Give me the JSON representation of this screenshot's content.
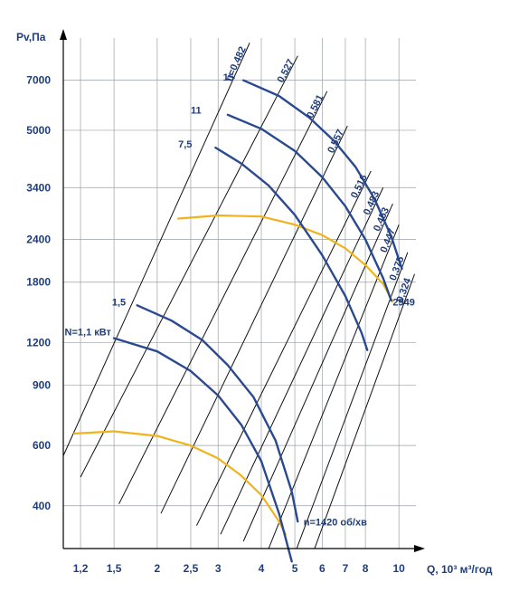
{
  "chart_data": {
    "type": "line",
    "title": "",
    "xlabel": "Q, 10³ м³/год",
    "ylabel": "Pv,Па",
    "x_scale": "log",
    "y_scale": "log",
    "xlim": [
      1.07,
      11.2
    ],
    "ylim": [
      300,
      9300
    ],
    "x_ticks": [
      {
        "value": 1.2,
        "label": "1,2"
      },
      {
        "value": 1.5,
        "label": "1,5"
      },
      {
        "value": 2,
        "label": "2"
      },
      {
        "value": 2.5,
        "label": "2,5"
      },
      {
        "value": 3,
        "label": "3"
      },
      {
        "value": 4,
        "label": "4"
      },
      {
        "value": 5,
        "label": "5"
      },
      {
        "value": 6,
        "label": "6"
      },
      {
        "value": 7,
        "label": "7"
      },
      {
        "value": 8,
        "label": "8"
      },
      {
        "value": 10,
        "label": "10"
      }
    ],
    "y_ticks": [
      {
        "value": 400,
        "label": "400"
      },
      {
        "value": 600,
        "label": "600"
      },
      {
        "value": 900,
        "label": "900"
      },
      {
        "value": 1200,
        "label": "1200"
      },
      {
        "value": 1800,
        "label": "1800"
      },
      {
        "value": 2400,
        "label": "2400"
      },
      {
        "value": 3400,
        "label": "3400"
      },
      {
        "value": 5000,
        "label": "5000"
      },
      {
        "value": 7000,
        "label": "7000"
      }
    ],
    "grid": true,
    "fan_curves": [
      {
        "name": "n=1420 об/хв",
        "color": "#f0b31c",
        "label_at": [
          5.3,
          350
        ],
        "points": [
          [
            1.15,
            650
          ],
          [
            1.5,
            660
          ],
          [
            2.0,
            640
          ],
          [
            2.5,
            600
          ],
          [
            3.0,
            550
          ],
          [
            3.5,
            490
          ],
          [
            4.0,
            430
          ],
          [
            4.5,
            360
          ],
          [
            4.7,
            330
          ]
        ]
      },
      {
        "name": "2949",
        "color": "#f0b31c",
        "label_at": [
          9.6,
          1540
        ],
        "points": [
          [
            2.3,
            2760
          ],
          [
            3.0,
            2820
          ],
          [
            4.0,
            2800
          ],
          [
            5.0,
            2650
          ],
          [
            6.0,
            2470
          ],
          [
            7.0,
            2260
          ],
          [
            8.0,
            2020
          ],
          [
            9.0,
            1780
          ],
          [
            9.6,
            1580
          ]
        ]
      }
    ],
    "power_curves": [
      {
        "name": "N=1,1 кВт",
        "color": "#2a4a8f",
        "label_at": [
          1.08,
          1260
        ],
        "points": [
          [
            1.5,
            1235
          ],
          [
            2.0,
            1130
          ],
          [
            2.5,
            990
          ],
          [
            3.0,
            840
          ],
          [
            3.5,
            690
          ],
          [
            4.0,
            540
          ],
          [
            4.5,
            380
          ],
          [
            4.9,
            275
          ]
        ]
      },
      {
        "name": "1,5",
        "color": "#2a4a8f",
        "label_at": [
          1.48,
          1540
        ],
        "points": [
          [
            1.75,
            1540
          ],
          [
            2.2,
            1390
          ],
          [
            2.7,
            1220
          ],
          [
            3.2,
            1030
          ],
          [
            3.8,
            830
          ],
          [
            4.4,
            620
          ],
          [
            4.9,
            440
          ],
          [
            5.1,
            360
          ]
        ]
      },
      {
        "name": "7,5",
        "color": "#2a4a8f",
        "label_at": [
          2.3,
          4450
        ],
        "points": [
          [
            2.95,
            4450
          ],
          [
            3.5,
            4000
          ],
          [
            4.2,
            3450
          ],
          [
            5.0,
            2830
          ],
          [
            6.0,
            2160
          ],
          [
            7.0,
            1640
          ],
          [
            7.8,
            1280
          ],
          [
            8.1,
            1140
          ]
        ]
      },
      {
        "name": "11",
        "color": "#2a4a8f",
        "label_at": [
          2.5,
          5600
        ],
        "points": [
          [
            3.2,
            5550
          ],
          [
            4.0,
            5050
          ],
          [
            5.0,
            4350
          ],
          [
            6.0,
            3650
          ],
          [
            7.0,
            3000
          ],
          [
            8.0,
            2400
          ],
          [
            9.0,
            1850
          ],
          [
            9.5,
            1590
          ]
        ]
      },
      {
        "name": "15",
        "color": "#2a4a8f",
        "label_at": [
          3.1,
          6980
        ],
        "points": [
          [
            3.55,
            7000
          ],
          [
            4.5,
            6300
          ],
          [
            5.5,
            5450
          ],
          [
            6.5,
            4650
          ],
          [
            7.5,
            3900
          ],
          [
            8.5,
            3150
          ],
          [
            9.5,
            2450
          ],
          [
            10.2,
            1970
          ]
        ]
      }
    ],
    "efficiency_lines": [
      {
        "label": "η=0,482",
        "top": [
          3.7,
          9000
        ],
        "bottom": [
          1.07,
          560
        ]
      },
      {
        "label": "0,527",
        "top": [
          5.1,
          8250
        ],
        "bottom": [
          1.2,
          485
        ]
      },
      {
        "label": "0,581",
        "top": [
          6.2,
          6500
        ],
        "bottom": [
          1.55,
          405
        ]
      },
      {
        "label": "0,557",
        "top": [
          7.1,
          5150
        ],
        "bottom": [
          2.05,
          380
        ]
      },
      {
        "label": "0,516",
        "top": [
          8.3,
          3800
        ],
        "bottom": [
          2.6,
          350
        ]
      },
      {
        "label": "0,483",
        "top": [
          9.0,
          3400
        ],
        "bottom": [
          3.05,
          330
        ]
      },
      {
        "label": "0,453",
        "top": [
          9.6,
          3050
        ],
        "bottom": [
          3.55,
          315
        ]
      },
      {
        "label": "0,447",
        "top": [
          10.0,
          2650
        ],
        "bottom": [
          4.2,
          300
        ]
      },
      {
        "label": "0,375",
        "top": [
          10.6,
          2200
        ],
        "bottom": [
          5.0,
          290
        ]
      },
      {
        "label": "0,324",
        "top": [
          11.1,
          1900
        ],
        "bottom": [
          5.6,
          285
        ]
      }
    ]
  }
}
